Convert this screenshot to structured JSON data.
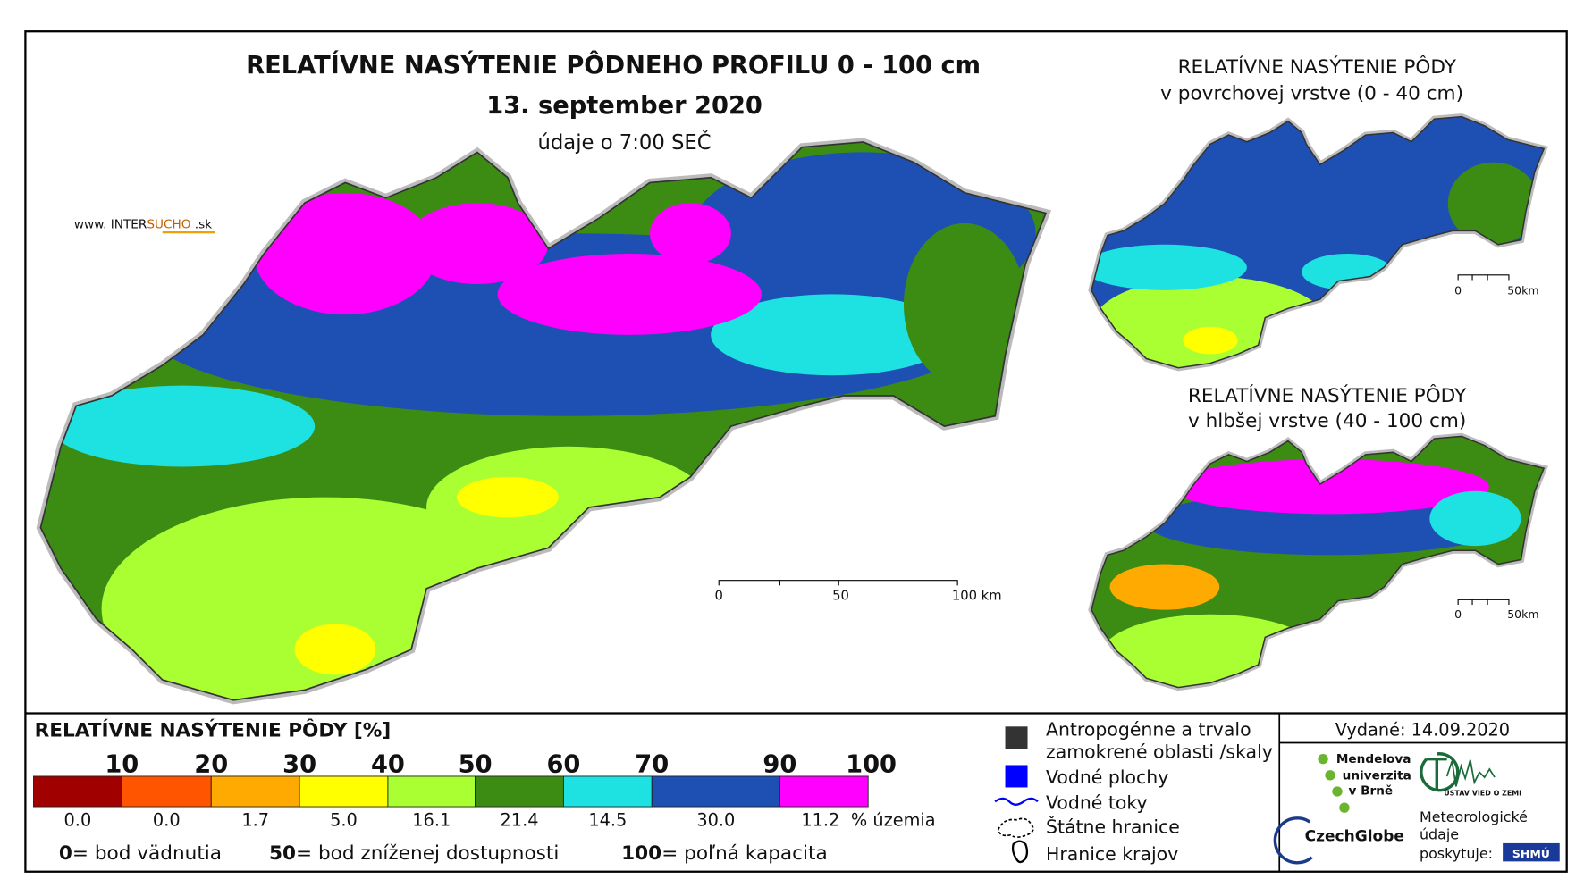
{
  "header": {
    "title": "RELATÍVNE NASÝTENIE PÔDNEHO PROFILU 0 - 100 cm",
    "date": "13. september 2020",
    "time_note": "údaje o 7:00 SEČ",
    "website": {
      "prefix": "www. INTER",
      "brand": "SUCHO",
      "suffix": " .sk"
    }
  },
  "main_scale": {
    "labels": [
      "0",
      "50",
      "100 km"
    ]
  },
  "insets": [
    {
      "title_line1": "RELATÍVNE NASÝTENIE PÔDY",
      "title_line2": "v povrchovej vrstve (0 - 40 cm)",
      "scale_labels": [
        "0",
        "50km"
      ]
    },
    {
      "title_line1": "RELATÍVNE NASÝTENIE PÔDY",
      "title_line2": "v hlbšej vrstve (40 - 100 cm)",
      "scale_labels": [
        "0",
        "50km"
      ]
    }
  ],
  "legend": {
    "title": "RELATÍVNE NASÝTENIE PÔDY [%]",
    "breaks": [
      "10",
      "20",
      "30",
      "40",
      "50",
      "60",
      "70",
      "90",
      "100"
    ],
    "classes": [
      {
        "color": "#a00000",
        "share": "0.0"
      },
      {
        "color": "#ff5500",
        "share": "0.0"
      },
      {
        "color": "#ffaa00",
        "share": "1.7"
      },
      {
        "color": "#ffff00",
        "share": "5.0"
      },
      {
        "color": "#aaff33",
        "share": "16.1"
      },
      {
        "color": "#3c8c14",
        "share": "21.4"
      },
      {
        "color": "#1ee1e1",
        "share": "14.5"
      },
      {
        "color": "#1e50b4",
        "share": "30.0"
      },
      {
        "color": "#ff00ff",
        "share": "11.2"
      }
    ],
    "share_unit": "% územia",
    "definitions": [
      {
        "value": "0",
        "text": "= bod vädnutia"
      },
      {
        "value": "50",
        "text": "= bod zníženej dostupnosti"
      },
      {
        "value": "100",
        "text": "= poľná kapacita"
      }
    ]
  },
  "symbols": [
    {
      "lines": [
        "Antropogénne a trvalo",
        "zamokrené oblasti /skaly"
      ]
    },
    {
      "lines": [
        "Vodné plochy"
      ]
    },
    {
      "lines": [
        "Vodné toky"
      ]
    },
    {
      "lines": [
        "Štátne hranice"
      ]
    },
    {
      "lines": [
        "Hranice krajov"
      ]
    }
  ],
  "credits": {
    "issued": "Vydané: 14.09.2020",
    "mendel": [
      "Mendelova",
      "univerzita",
      "v Brně"
    ],
    "ustav": "ÚSTAV VIED O ZEMI",
    "czechglobe": "CzechGlobe",
    "meteo": [
      "Meteorologické",
      "údaje",
      "poskytuje:"
    ],
    "shmu": "SHMÚ"
  }
}
